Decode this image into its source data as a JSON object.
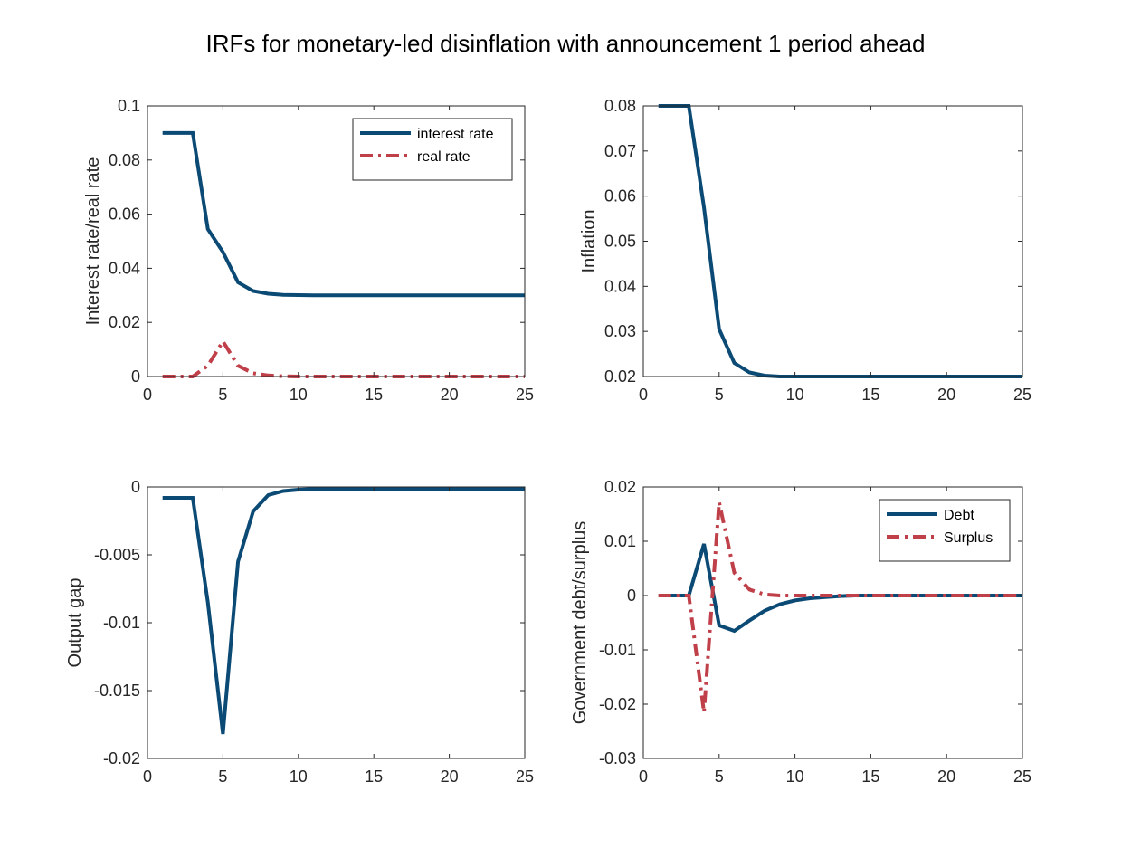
{
  "figure_title": "IRFs for monetary-led disinflation with announcement 1 period ahead",
  "colors": {
    "blue": "#0b4a74",
    "red": "#c0404a",
    "axis": "#262626"
  },
  "chart_data": [
    {
      "id": "rates",
      "type": "line",
      "title": "",
      "xlabel": "",
      "ylabel": "Interest rate/real rate",
      "xlim": [
        0,
        25
      ],
      "ylim": [
        0,
        0.1
      ],
      "xticks": [
        0,
        5,
        10,
        15,
        20,
        25
      ],
      "xtick_labels": [
        "0",
        "5",
        "10",
        "15",
        "20",
        "25"
      ],
      "yticks": [
        0,
        0.02,
        0.04,
        0.06,
        0.08,
        0.1
      ],
      "ytick_labels": [
        "0",
        "0.02",
        "0.04",
        "0.06",
        "0.08",
        "0.1"
      ],
      "grid": false,
      "legend": "top-right",
      "x": [
        1,
        2,
        3,
        4,
        5,
        6,
        7,
        8,
        9,
        10,
        11,
        12,
        13,
        14,
        15,
        16,
        17,
        18,
        19,
        20,
        21,
        22,
        23,
        24,
        25
      ],
      "series": [
        {
          "name": "interest rate",
          "color": "#0b4a74",
          "style": "solid",
          "values": [
            0.09,
            0.09,
            0.09,
            0.0545,
            0.046,
            0.0348,
            0.0316,
            0.0306,
            0.0302,
            0.0301,
            0.03,
            0.03,
            0.03,
            0.03,
            0.03,
            0.03,
            0.03,
            0.03,
            0.03,
            0.03,
            0.03,
            0.03,
            0.03,
            0.03,
            0.03
          ]
        },
        {
          "name": "real rate",
          "color": "#c0404a",
          "style": "dashdot",
          "values": [
            0,
            0,
            0,
            0.004,
            0.013,
            0.004,
            0.0012,
            0.0004,
            0.0001,
            0,
            0,
            0,
            0,
            0,
            0,
            0,
            0,
            0,
            0,
            0,
            0,
            0,
            0,
            0,
            0
          ]
        }
      ]
    },
    {
      "id": "inflation",
      "type": "line",
      "title": "",
      "xlabel": "",
      "ylabel": "Inflation",
      "xlim": [
        0,
        25
      ],
      "ylim": [
        0.02,
        0.08
      ],
      "xticks": [
        0,
        5,
        10,
        15,
        20,
        25
      ],
      "xtick_labels": [
        "0",
        "5",
        "10",
        "15",
        "20",
        "25"
      ],
      "yticks": [
        0.02,
        0.03,
        0.04,
        0.05,
        0.06,
        0.07,
        0.08
      ],
      "ytick_labels": [
        "0.02",
        "0.03",
        "0.04",
        "0.05",
        "0.06",
        "0.07",
        "0.08"
      ],
      "grid": false,
      "legend": "none",
      "x": [
        1,
        2,
        3,
        4,
        5,
        6,
        7,
        8,
        9,
        10,
        11,
        12,
        13,
        14,
        15,
        16,
        17,
        18,
        19,
        20,
        21,
        22,
        23,
        24,
        25
      ],
      "series": [
        {
          "name": "",
          "color": "#0b4a74",
          "style": "solid",
          "values": [
            0.08,
            0.08,
            0.08,
            0.0575,
            0.0305,
            0.023,
            0.0209,
            0.0202,
            0.02,
            0.02,
            0.02,
            0.02,
            0.02,
            0.02,
            0.02,
            0.02,
            0.02,
            0.02,
            0.02,
            0.02,
            0.02,
            0.02,
            0.02,
            0.02,
            0.02
          ]
        }
      ]
    },
    {
      "id": "output-gap",
      "type": "line",
      "title": "",
      "xlabel": "",
      "ylabel": "Output gap",
      "xlim": [
        0,
        25
      ],
      "ylim": [
        -0.02,
        0
      ],
      "xticks": [
        0,
        5,
        10,
        15,
        20,
        25
      ],
      "xtick_labels": [
        "0",
        "5",
        "10",
        "15",
        "20",
        "25"
      ],
      "yticks": [
        -0.02,
        -0.015,
        -0.01,
        -0.005,
        0
      ],
      "ytick_labels": [
        "-0.02",
        "-0.015",
        "-0.01",
        "-0.005",
        "0"
      ],
      "grid": false,
      "legend": "none",
      "x": [
        1,
        2,
        3,
        4,
        5,
        6,
        7,
        8,
        9,
        10,
        11,
        12,
        13,
        14,
        15,
        16,
        17,
        18,
        19,
        20,
        21,
        22,
        23,
        24,
        25
      ],
      "series": [
        {
          "name": "",
          "color": "#0b4a74",
          "style": "solid",
          "values": [
            -0.0008,
            -0.0008,
            -0.0008,
            -0.0085,
            -0.0182,
            -0.0055,
            -0.0018,
            -0.0006,
            -0.0003,
            -0.0002,
            -0.00015,
            -0.00015,
            -0.00015,
            -0.00015,
            -0.00015,
            -0.00015,
            -0.00015,
            -0.00015,
            -0.00015,
            -0.00015,
            -0.00015,
            -0.00015,
            -0.00015,
            -0.00015,
            -0.00015
          ]
        }
      ]
    },
    {
      "id": "debt-surplus",
      "type": "line",
      "title": "",
      "xlabel": "",
      "ylabel": "Government debt/surplus",
      "xlim": [
        0,
        25
      ],
      "ylim": [
        -0.03,
        0.02
      ],
      "xticks": [
        0,
        5,
        10,
        15,
        20,
        25
      ],
      "xtick_labels": [
        "0",
        "5",
        "10",
        "15",
        "20",
        "25"
      ],
      "yticks": [
        -0.03,
        -0.02,
        -0.01,
        0,
        0.01,
        0.02
      ],
      "ytick_labels": [
        "-0.03",
        "-0.02",
        "-0.01",
        "0",
        "0.01",
        "0.02"
      ],
      "grid": false,
      "legend": "top-right",
      "x": [
        1,
        2,
        3,
        4,
        5,
        6,
        7,
        8,
        9,
        10,
        11,
        12,
        13,
        14,
        15,
        16,
        17,
        18,
        19,
        20,
        21,
        22,
        23,
        24,
        25
      ],
      "series": [
        {
          "name": "Debt",
          "color": "#0b4a74",
          "style": "solid",
          "values": [
            0,
            0,
            0,
            0.0095,
            -0.0055,
            -0.0065,
            -0.0046,
            -0.0028,
            -0.0016,
            -0.0009,
            -0.0005,
            -0.0003,
            -0.0001,
            0,
            0,
            0,
            0,
            0,
            0,
            0,
            0,
            0,
            0,
            0,
            0
          ]
        },
        {
          "name": "Surplus",
          "color": "#c0404a",
          "style": "dashdot",
          "values": [
            0,
            0,
            0,
            -0.0215,
            0.0172,
            0.0042,
            0.0011,
            0.0002,
            0,
            0,
            0,
            0,
            0,
            0,
            0,
            0,
            0,
            0,
            0,
            0,
            0,
            0,
            0,
            0,
            0
          ]
        }
      ]
    }
  ]
}
